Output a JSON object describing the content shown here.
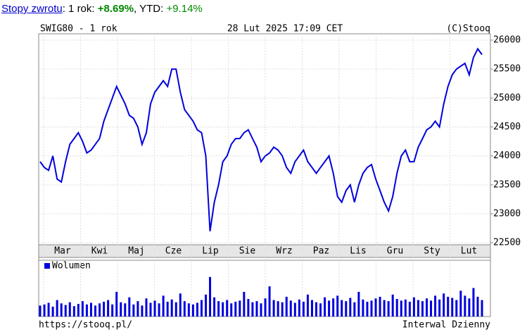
{
  "header": {
    "link": "Stopy zwrotu",
    "period": ": 1 rok: ",
    "return": "+8.69%",
    "ytd_label": ", YTD: ",
    "ytd": "+9.14%"
  },
  "chart_data": {
    "type": "line",
    "title": "SWIG80 - 1 rok",
    "date": "28 Lut 2025 17:09 CET",
    "source": "(C)Stooq",
    "footer_left": "https://stooq.pl/",
    "footer_right": "Interwal Dzienny",
    "volume_label": "Wolumen",
    "month_labels": [
      "Mar",
      "Kwi",
      "Maj",
      "Cze",
      "Lip",
      "Sie",
      "Wrz",
      "Paz",
      "Lis",
      "Gru",
      "Sty",
      "Lut"
    ],
    "ylim": [
      22465,
      26110
    ],
    "yticks": [
      22500,
      23000,
      23500,
      24000,
      24500,
      25000,
      25500,
      26000
    ],
    "grid": true,
    "series": [
      {
        "name": "SWIG80",
        "color": "#0000dd",
        "values": [
          23900,
          23800,
          23750,
          24000,
          23600,
          23550,
          23900,
          24200,
          24300,
          24400,
          24250,
          24050,
          24100,
          24200,
          24300,
          24600,
          24800,
          25000,
          25200,
          25050,
          24900,
          24700,
          24650,
          24500,
          24200,
          24400,
          24900,
          25100,
          25200,
          25300,
          25200,
          25500,
          25500,
          25100,
          24800,
          24700,
          24600,
          24450,
          24400,
          24000,
          22700,
          23200,
          23500,
          23900,
          24000,
          24200,
          24300,
          24300,
          24400,
          24450,
          24300,
          24150,
          23900,
          24000,
          24050,
          24150,
          24100,
          24000,
          23800,
          23700,
          23900,
          24000,
          24100,
          23900,
          23800,
          23700,
          23800,
          23900,
          24000,
          23700,
          23300,
          23200,
          23400,
          23500,
          23200,
          23500,
          23700,
          23800,
          23850,
          23600,
          23400,
          23200,
          23050,
          23300,
          23700,
          24000,
          24100,
          23900,
          23900,
          24150,
          24300,
          24450,
          24500,
          24600,
          24500,
          24900,
          25200,
          25400,
          25500,
          25550,
          25600,
          25400,
          25700,
          25850,
          25750
        ]
      },
      {
        "name": "Wolumen",
        "color": "#0000dd",
        "vlim": [
          0,
          100
        ],
        "values": [
          20,
          22,
          25,
          18,
          30,
          24,
          21,
          26,
          19,
          23,
          28,
          22,
          25,
          20,
          24,
          27,
          30,
          22,
          45,
          26,
          24,
          35,
          22,
          28,
          20,
          33,
          25,
          29,
          24,
          38,
          27,
          31,
          26,
          42,
          28,
          24,
          22,
          25,
          30,
          40,
          72,
          35,
          28,
          26,
          30,
          24,
          27,
          29,
          45,
          32,
          26,
          28,
          24,
          33,
          55,
          30,
          28,
          26,
          36,
          29,
          25,
          31,
          27,
          40,
          30,
          26,
          24,
          35,
          29,
          33,
          38,
          30,
          28,
          34,
          26,
          45,
          31,
          27,
          29,
          33,
          36,
          30,
          28,
          40,
          32,
          29,
          31,
          27,
          35,
          30,
          28,
          33,
          29,
          38,
          31,
          42,
          36,
          34,
          30,
          47,
          38,
          33,
          52,
          36,
          30
        ]
      }
    ]
  }
}
